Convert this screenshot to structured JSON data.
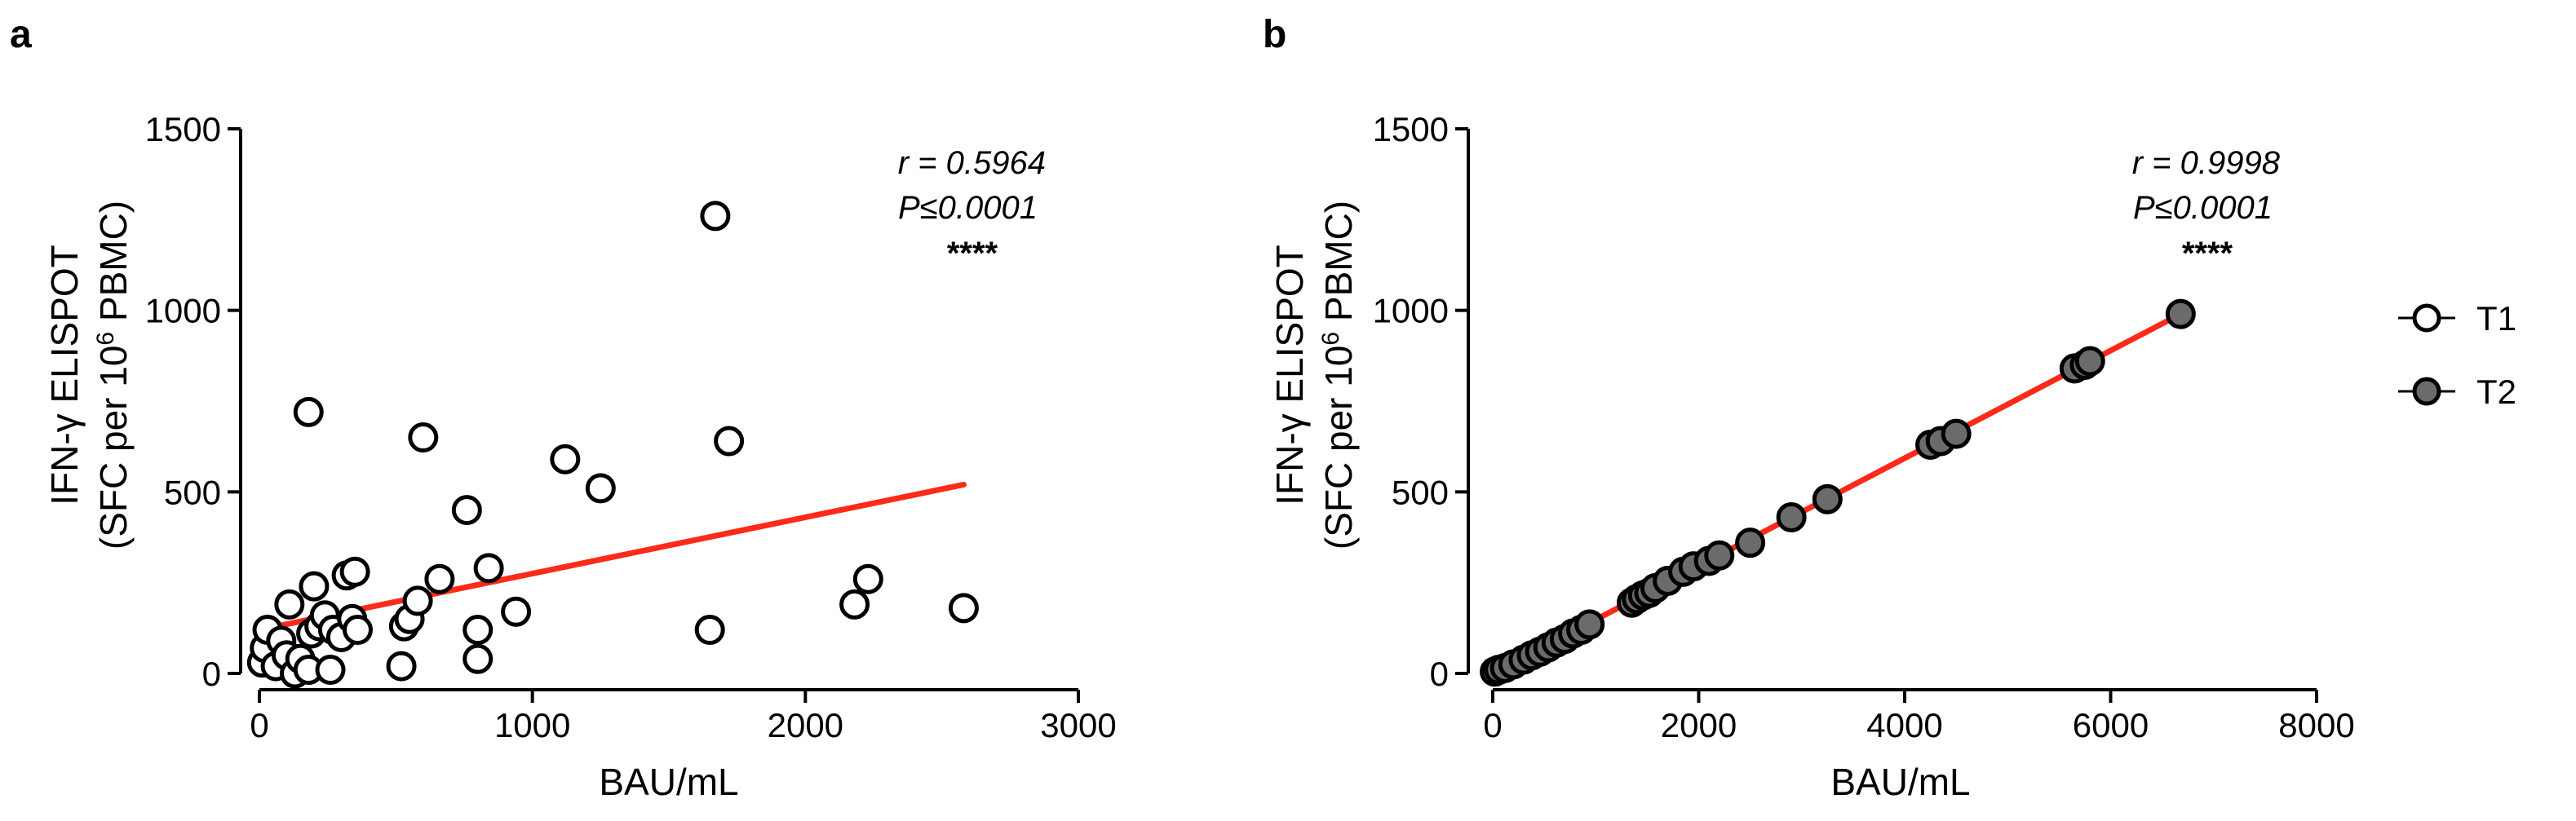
{
  "chart_data": [
    {
      "type": "scatter",
      "panel_label": "a",
      "xlabel": "BAU/mL",
      "ylabel_line1": "IFN-γ ELISPOT",
      "ylabel_line2_pre": "(SFC per 10",
      "ylabel_line2_sup": "6",
      "ylabel_line2_post": " PBMC)",
      "xlim": [
        0,
        3000
      ],
      "ylim": [
        0,
        1500
      ],
      "xticks": [
        0,
        1000,
        2000,
        3000
      ],
      "yticks": [
        0,
        500,
        1000,
        1500
      ],
      "annotation_r": "r = 0.5964",
      "annotation_p": "P≤0.0001",
      "significance": "****",
      "series": [
        {
          "name": "T1",
          "marker": "open-circle",
          "points": [
            [
              10,
              30
            ],
            [
              20,
              70
            ],
            [
              30,
              120
            ],
            [
              60,
              20
            ],
            [
              80,
              90
            ],
            [
              100,
              50
            ],
            [
              110,
              190
            ],
            [
              130,
              0
            ],
            [
              150,
              40
            ],
            [
              180,
              10
            ],
            [
              180,
              720
            ],
            [
              190,
              110
            ],
            [
              200,
              240
            ],
            [
              220,
              130
            ],
            [
              240,
              160
            ],
            [
              260,
              10
            ],
            [
              270,
              120
            ],
            [
              300,
              100
            ],
            [
              320,
              270
            ],
            [
              340,
              150
            ],
            [
              350,
              280
            ],
            [
              360,
              120
            ],
            [
              520,
              20
            ],
            [
              530,
              130
            ],
            [
              550,
              150
            ],
            [
              580,
              200
            ],
            [
              600,
              650
            ],
            [
              660,
              260
            ],
            [
              760,
              450
            ],
            [
              800,
              40
            ],
            [
              800,
              120
            ],
            [
              840,
              290
            ],
            [
              940,
              170
            ],
            [
              1120,
              590
            ],
            [
              1250,
              510
            ],
            [
              1650,
              120
            ],
            [
              1670,
              1260
            ],
            [
              1720,
              640
            ],
            [
              2180,
              190
            ],
            [
              2230,
              260
            ],
            [
              2580,
              180
            ]
          ]
        }
      ],
      "fit_line": {
        "color": "#ff2a1a",
        "x": [
          0,
          2580
        ],
        "y": [
          120,
          520
        ]
      }
    },
    {
      "type": "scatter",
      "panel_label": "b",
      "xlabel": "BAU/mL",
      "ylabel_line1": "IFN-γ ELISPOT",
      "ylabel_line2_pre": "(SFC per 10",
      "ylabel_line2_sup": "6",
      "ylabel_line2_post": " PBMC)",
      "xlim": [
        0,
        8000
      ],
      "ylim": [
        0,
        1500
      ],
      "xticks": [
        0,
        2000,
        4000,
        6000,
        8000
      ],
      "yticks": [
        0,
        500,
        1000,
        1500
      ],
      "annotation_r": "r = 0.9998",
      "annotation_p": "P≤0.0001",
      "significance": "****",
      "series": [
        {
          "name": "T2",
          "marker": "filled-circle",
          "fill": "#6b6b6b",
          "points": [
            [
              20,
              5
            ],
            [
              60,
              10
            ],
            [
              120,
              15
            ],
            [
              200,
              25
            ],
            [
              300,
              38
            ],
            [
              380,
              50
            ],
            [
              460,
              60
            ],
            [
              540,
              72
            ],
            [
              620,
              85
            ],
            [
              700,
              95
            ],
            [
              780,
              110
            ],
            [
              860,
              120
            ],
            [
              940,
              135
            ],
            [
              1350,
              195
            ],
            [
              1400,
              205
            ],
            [
              1460,
              215
            ],
            [
              1520,
              222
            ],
            [
              1580,
              235
            ],
            [
              1700,
              255
            ],
            [
              1850,
              280
            ],
            [
              1950,
              295
            ],
            [
              2100,
              310
            ],
            [
              2200,
              325
            ],
            [
              2500,
              360
            ],
            [
              2900,
              430
            ],
            [
              3250,
              480
            ],
            [
              4250,
              630
            ],
            [
              4350,
              640
            ],
            [
              4500,
              660
            ],
            [
              5650,
              840
            ],
            [
              5750,
              850
            ],
            [
              5800,
              860
            ],
            [
              6680,
              990
            ]
          ]
        }
      ],
      "fit_line": {
        "color": "#ff2a1a",
        "x": [
          0,
          6680
        ],
        "y": [
          0,
          990
        ]
      }
    }
  ],
  "legend": {
    "items": [
      {
        "label": "T1",
        "marker": "open-circle"
      },
      {
        "label": "T2",
        "marker": "filled-circle",
        "fill": "#6b6b6b"
      }
    ]
  }
}
